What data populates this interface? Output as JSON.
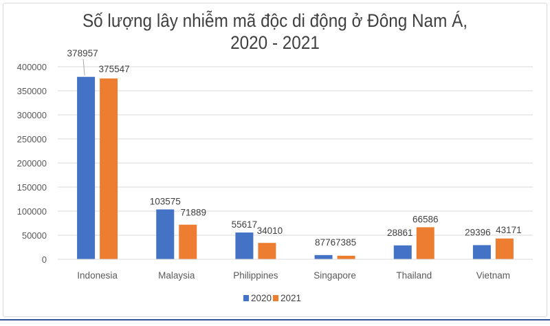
{
  "chart_data": {
    "type": "bar",
    "title_line1": "Số lượng lây nhiễm mã độc di động ở Đông Nam Á,",
    "title_line2": "2020 - 2021",
    "categories": [
      "Indonesia",
      "Malaysia",
      "Philippines",
      "Singapore",
      "Thailand",
      "Vietnam"
    ],
    "series": [
      {
        "name": "2020",
        "color": "#4472c4",
        "values": [
          378957,
          103575,
          55617,
          8776,
          28861,
          29396
        ]
      },
      {
        "name": "2021",
        "color": "#ed7d31",
        "values": [
          375547,
          71889,
          34010,
          7385,
          66586,
          43171
        ]
      }
    ],
    "ylim": [
      0,
      400000
    ],
    "yticks": [
      0,
      50000,
      100000,
      150000,
      200000,
      250000,
      300000,
      350000,
      400000
    ],
    "grid": true,
    "legend": "bottom",
    "xlabel": "",
    "ylabel": ""
  }
}
